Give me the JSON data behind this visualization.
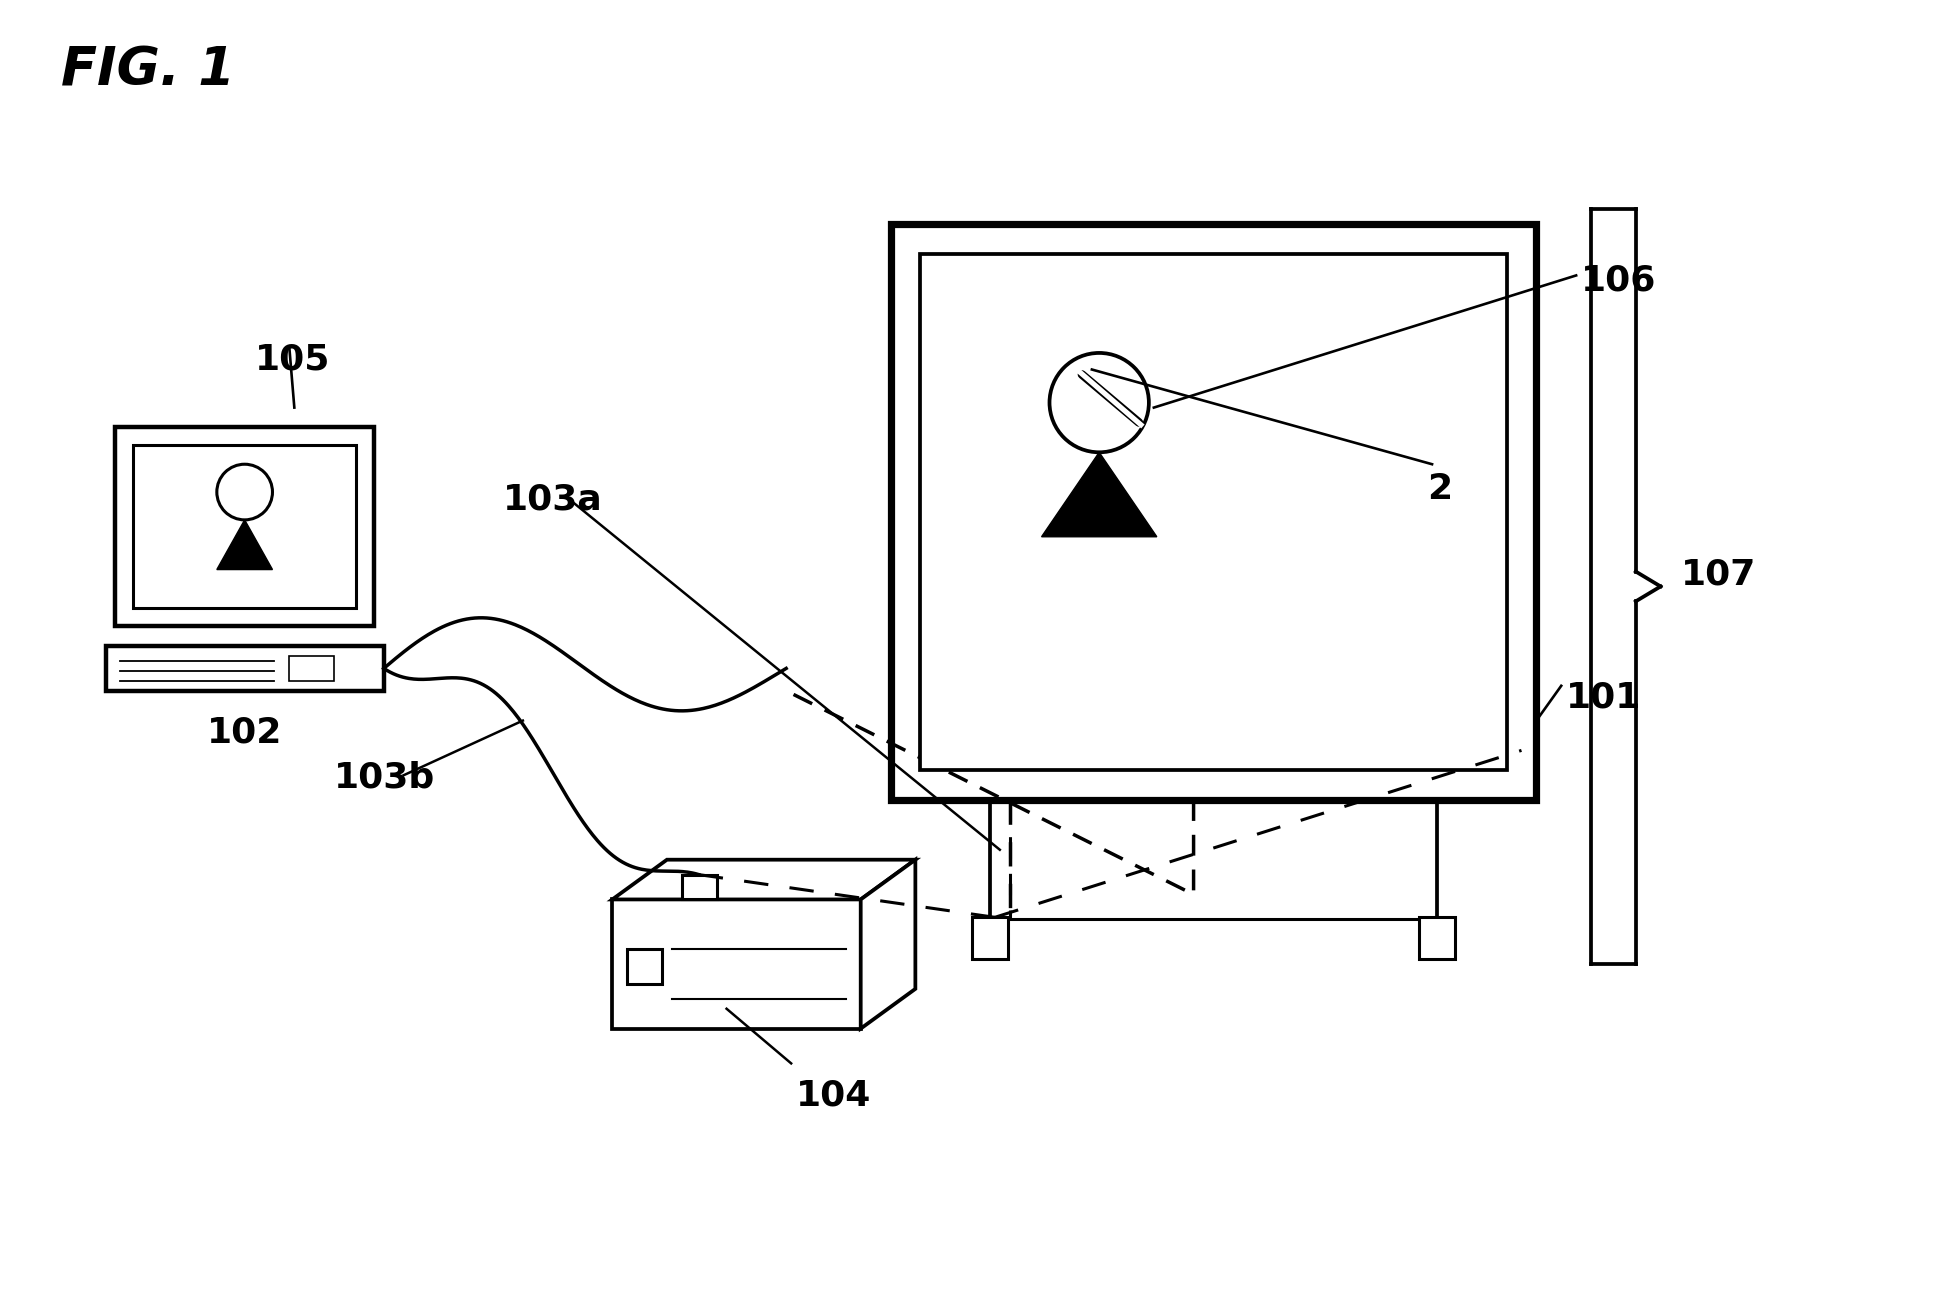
{
  "bg_color": "#ffffff",
  "fig_label": "FIG. 1",
  "labels": {
    "n105": "105",
    "n103a": "103a",
    "n103b": "103b",
    "n102": "102",
    "n104": "104",
    "n106": "106",
    "n107": "107",
    "n101": "101",
    "n2": "2"
  },
  "fig_width": 19.44,
  "fig_height": 13.11
}
